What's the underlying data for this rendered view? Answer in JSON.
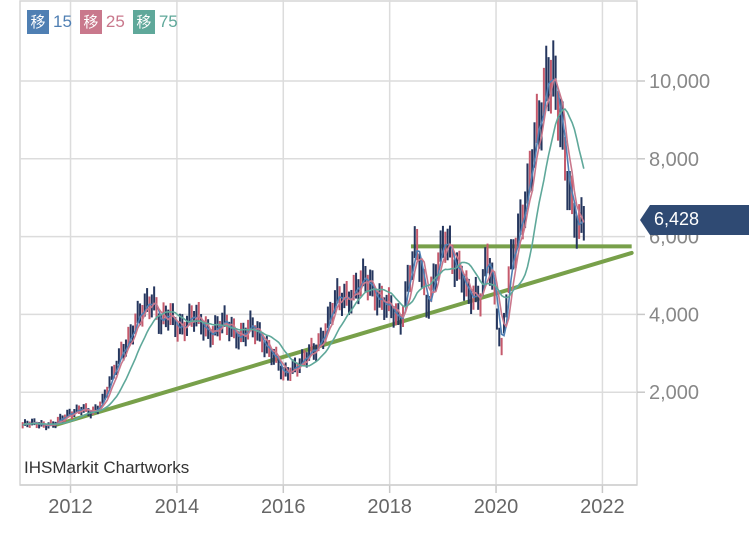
{
  "legend": [
    {
      "glyph": "移",
      "period": "15",
      "color": "#4f7fb3"
    },
    {
      "glyph": "移",
      "period": "25",
      "color": "#c9788c"
    },
    {
      "glyph": "移",
      "period": "75",
      "color": "#5fa89a"
    }
  ],
  "watermark": "IHSMarkit Chartworks",
  "last_price": "6,428",
  "chart_data": {
    "type": "line",
    "x_ticks": [
      "2012",
      "2014",
      "2016",
      "2018",
      "2020",
      "2022"
    ],
    "y_ticks": [
      "2,000",
      "4,000",
      "6,000",
      "8,000",
      "10,000"
    ],
    "xlim": [
      2011.05,
      2022.65
    ],
    "ylim": [
      0,
      11600
    ],
    "price_series": {
      "x": [
        2011.1,
        2011.4,
        2011.7,
        2012.0,
        2012.2,
        2012.4,
        2012.6,
        2012.8,
        2013.0,
        2013.2,
        2013.4,
        2013.55,
        2013.7,
        2013.85,
        2014.0,
        2014.3,
        2014.6,
        2014.9,
        2015.2,
        2015.4,
        2015.6,
        2015.8,
        2016.0,
        2016.2,
        2016.4,
        2016.6,
        2016.8,
        2017.0,
        2017.2,
        2017.4,
        2017.6,
        2017.8,
        2018.0,
        2018.2,
        2018.35,
        2018.5,
        2018.7,
        2018.9,
        2019.05,
        2019.2,
        2019.35,
        2019.5,
        2019.7,
        2019.85,
        2020.0,
        2020.1,
        2020.2,
        2020.3,
        2020.45,
        2020.6,
        2020.75,
        2020.9,
        2020.98,
        2021.05,
        2021.15,
        2021.25,
        2021.35,
        2021.45,
        2021.55,
        2021.65
      ],
      "y": [
        1150,
        1200,
        1150,
        1500,
        1550,
        1450,
        1800,
        2400,
        3200,
        3700,
        4100,
        4500,
        3800,
        3900,
        3700,
        3900,
        3600,
        3700,
        3500,
        3600,
        3400,
        3000,
        2400,
        2700,
        2800,
        3100,
        3700,
        4300,
        4500,
        4700,
        4800,
        4500,
        4100,
        3800,
        5000,
        5700,
        4200,
        5400,
        5800,
        5300,
        5200,
        4400,
        4300,
        5800,
        4200,
        2900,
        4400,
        5600,
        6400,
        7000,
        8500,
        9800,
        10400,
        10100,
        9300,
        8400,
        7500,
        6900,
        6200,
        6400
      ]
    },
    "support_line": {
      "from": [
        2011.7,
        1150
      ],
      "to": [
        2022.55,
        5580
      ]
    },
    "resistance_line": {
      "from": [
        2018.4,
        5750
      ],
      "to": [
        2022.55,
        5750
      ]
    }
  }
}
